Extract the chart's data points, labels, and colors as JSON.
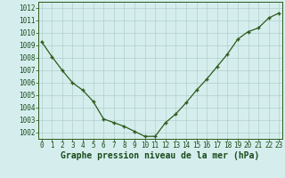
{
  "x": [
    0,
    1,
    2,
    3,
    4,
    5,
    6,
    7,
    8,
    9,
    10,
    11,
    12,
    13,
    14,
    15,
    16,
    17,
    18,
    19,
    20,
    21,
    22,
    23
  ],
  "y": [
    1009.3,
    1008.1,
    1007.0,
    1006.0,
    1005.4,
    1004.5,
    1003.1,
    1002.8,
    1002.5,
    1002.1,
    1001.7,
    1001.7,
    1002.8,
    1003.5,
    1004.4,
    1005.4,
    1006.3,
    1007.3,
    1008.3,
    1009.5,
    1010.1,
    1010.4,
    1011.2,
    1011.6
  ],
  "line_color": "#2d5a1b",
  "marker": "+",
  "marker_color": "#2d5a1b",
  "bg_color": "#d5eeed",
  "grid_color": "#b0cfcc",
  "xlabel": "Graphe pression niveau de la mer (hPa)",
  "xlabel_color": "#1a4a1a",
  "tick_color": "#1a4a1a",
  "ylim_min": 1001.5,
  "ylim_max": 1012.5,
  "yticks": [
    1002,
    1003,
    1004,
    1005,
    1006,
    1007,
    1008,
    1009,
    1010,
    1011,
    1012
  ],
  "xlim_min": -0.3,
  "xlim_max": 23.3,
  "tick_fontsize": 5.5,
  "xlabel_fontsize": 7.0
}
